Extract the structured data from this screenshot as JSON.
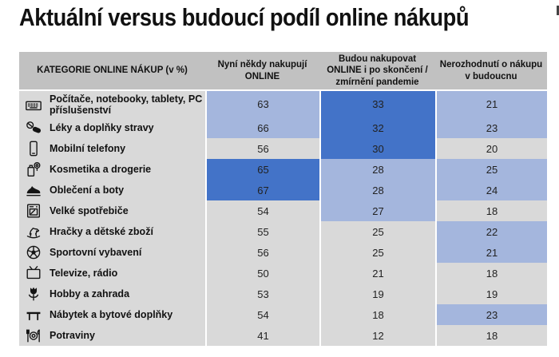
{
  "title": "Aktuální versus budoucí podíl online nákupů",
  "colors": {
    "header_bg": "#C1C1C1",
    "base_cell": "#D9D9D9",
    "light_blue": "#A4B6DD",
    "dark_blue": "#4373C8",
    "separator": "#FFFFFF"
  },
  "table": {
    "headers": [
      "KATEGORIE ONLINE NÁKUP (v %)",
      "Nyní někdy nakupují ONLINE",
      "Budou nakupovat ONLINE i po skončení / zmírnění pandemie",
      "Nerozhodnutí o nákupu v budoucnu"
    ],
    "rows": [
      {
        "icon": "keyboard-icon",
        "category": "Počítače, notebooky, tablety, PC příslušenství",
        "values": [
          63,
          33,
          21
        ],
        "highlights": [
          "light",
          "dark",
          "light"
        ]
      },
      {
        "icon": "pills-icon",
        "category": "Léky a doplňky stravy",
        "values": [
          66,
          32,
          23
        ],
        "highlights": [
          "light",
          "dark",
          "light"
        ]
      },
      {
        "icon": "phone-icon",
        "category": "Mobilní telefony",
        "values": [
          56,
          30,
          20
        ],
        "highlights": [
          "base",
          "dark",
          "base"
        ]
      },
      {
        "icon": "cosmetics-icon",
        "category": "Kosmetika a drogerie",
        "values": [
          65,
          28,
          25
        ],
        "highlights": [
          "dark",
          "light",
          "light"
        ]
      },
      {
        "icon": "shoe-icon",
        "category": "Oblečení a boty",
        "values": [
          67,
          28,
          24
        ],
        "highlights": [
          "dark",
          "light",
          "light"
        ]
      },
      {
        "icon": "appliance-icon",
        "category": "Velké spotřebiče",
        "values": [
          54,
          27,
          18
        ],
        "highlights": [
          "base",
          "light",
          "base"
        ]
      },
      {
        "icon": "rocking-horse-icon",
        "category": "Hračky a dětské zboží",
        "values": [
          55,
          25,
          22
        ],
        "highlights": [
          "base",
          "base",
          "light"
        ]
      },
      {
        "icon": "ball-icon",
        "category": "Sportovní vybavení",
        "values": [
          56,
          25,
          21
        ],
        "highlights": [
          "base",
          "base",
          "light"
        ]
      },
      {
        "icon": "tv-icon",
        "category": "Televize, rádio",
        "values": [
          50,
          21,
          18
        ],
        "highlights": [
          "base",
          "base",
          "base"
        ]
      },
      {
        "icon": "flower-icon",
        "category": "Hobby a zahrada",
        "values": [
          53,
          19,
          19
        ],
        "highlights": [
          "base",
          "base",
          "base"
        ]
      },
      {
        "icon": "furniture-icon",
        "category": "Nábytek a bytové doplňky",
        "values": [
          54,
          18,
          23
        ],
        "highlights": [
          "base",
          "base",
          "light"
        ]
      },
      {
        "icon": "food-icon",
        "category": "Potraviny",
        "values": [
          41,
          12,
          18
        ],
        "highlights": [
          "base",
          "base",
          "base"
        ]
      }
    ]
  },
  "chart_data": {
    "type": "table",
    "title": "Aktuální versus budoucí podíl online nákupů",
    "unit": "%",
    "categories": [
      "Počítače, notebooky, tablety, PC příslušenství",
      "Léky a doplňky stravy",
      "Mobilní telefony",
      "Kosmetika a drogerie",
      "Oblečení a boty",
      "Velké spotřebiče",
      "Hračky a dětské zboží",
      "Sportovní vybavení",
      "Televize, rádio",
      "Hobby a zahrada",
      "Nábytek a bytové doplňky",
      "Potraviny"
    ],
    "series": [
      {
        "name": "Nyní někdy nakupují ONLINE",
        "values": [
          63,
          66,
          56,
          65,
          67,
          54,
          55,
          56,
          50,
          53,
          54,
          41
        ]
      },
      {
        "name": "Budou nakupovat ONLINE i po skončení / zmírnění pandemie",
        "values": [
          33,
          32,
          30,
          28,
          28,
          27,
          25,
          25,
          21,
          19,
          18,
          12
        ]
      },
      {
        "name": "Nerozhodnutí o nákupu v budoucnu",
        "values": [
          21,
          23,
          20,
          25,
          24,
          18,
          22,
          21,
          18,
          19,
          23,
          18
        ]
      }
    ],
    "legend_position": "none",
    "grid": false
  }
}
